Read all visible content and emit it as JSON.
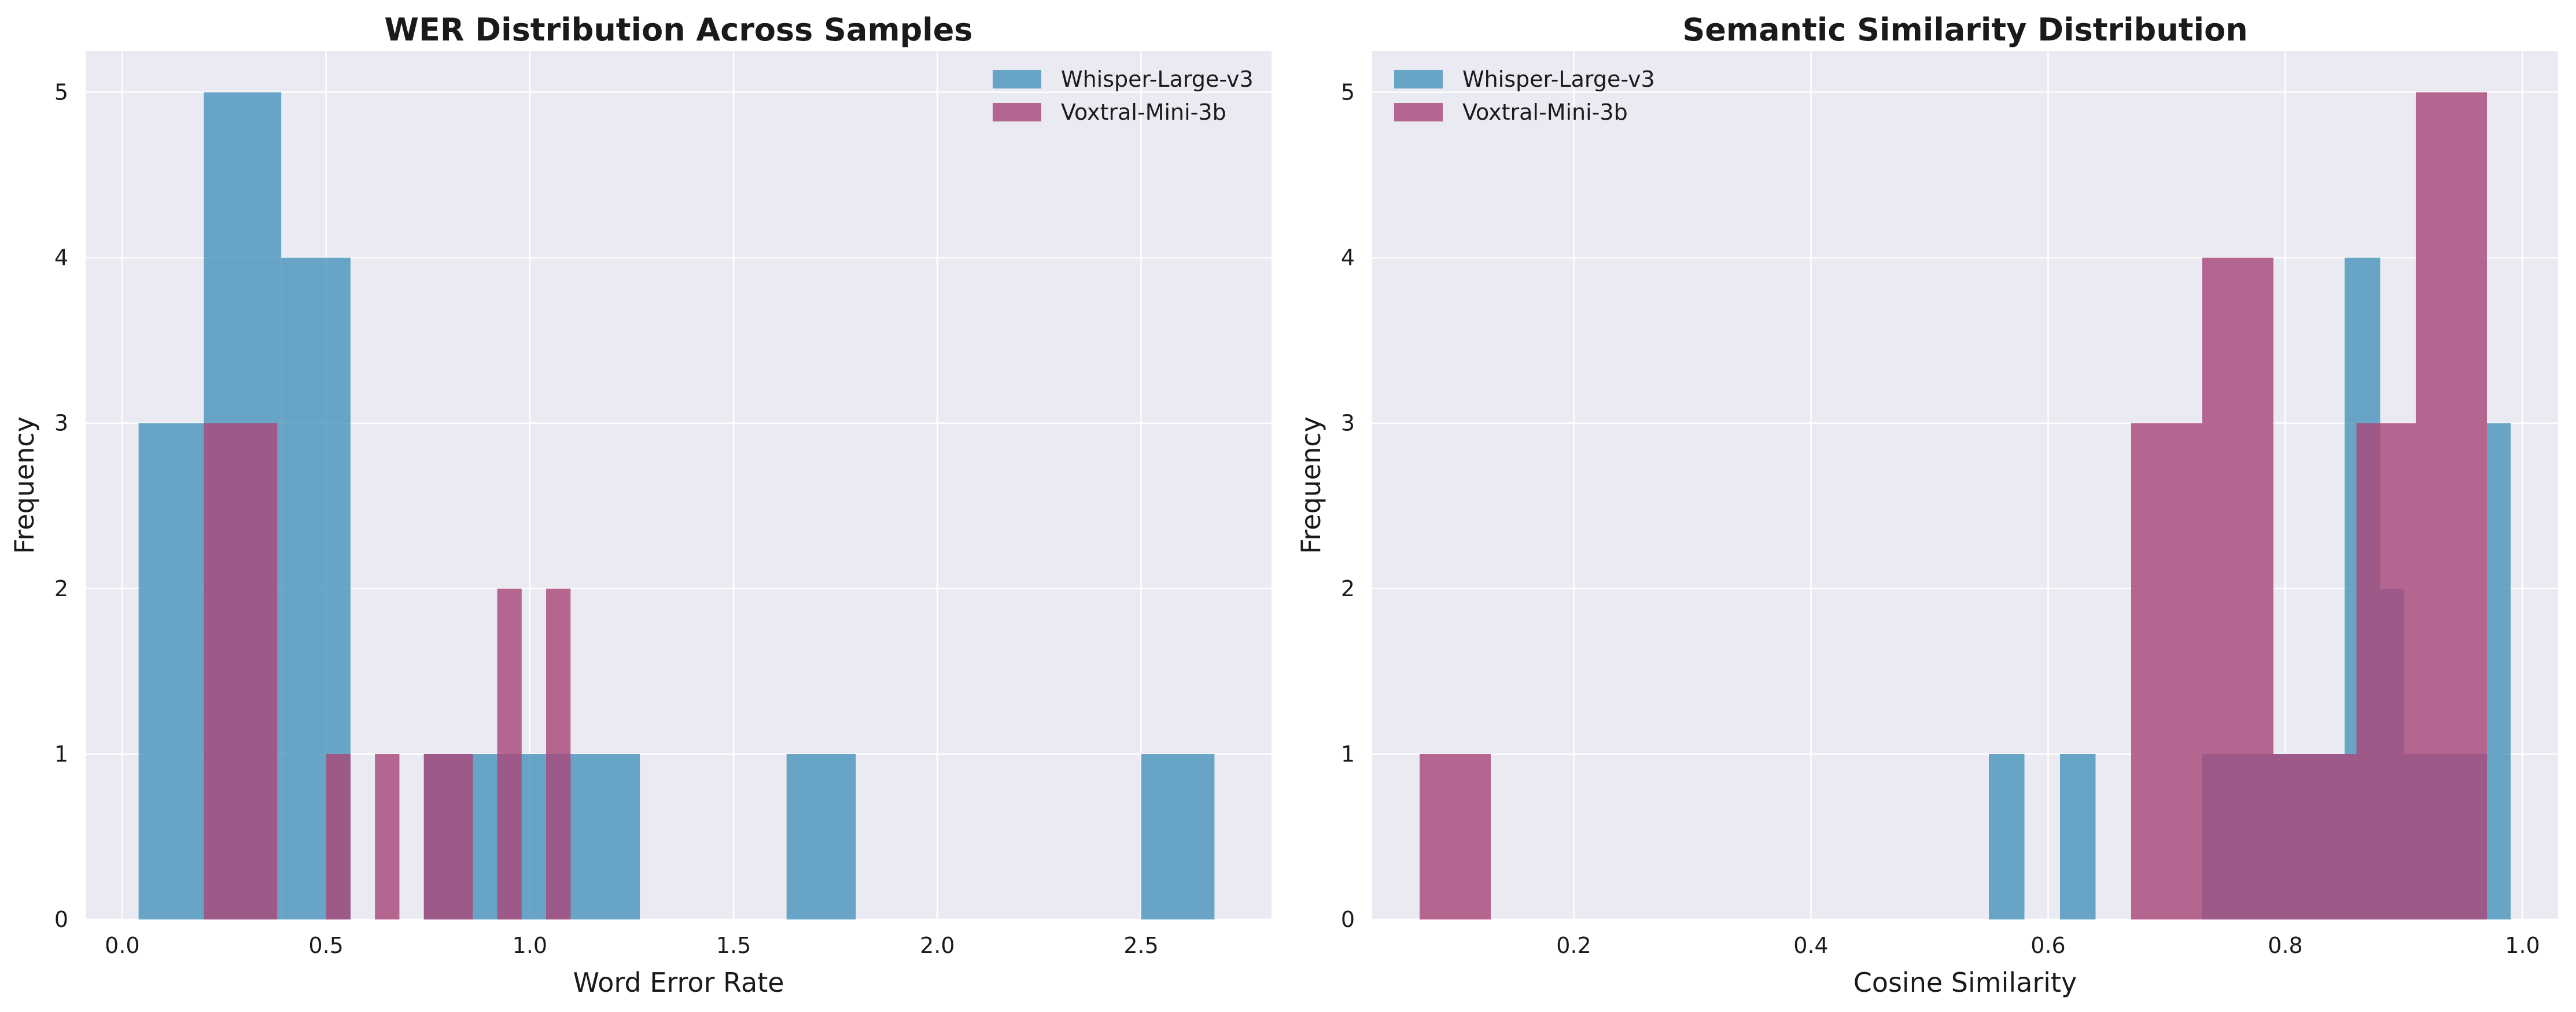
{
  "chart_data": [
    {
      "type": "histogram",
      "title": "WER Distribution Across Samples",
      "xlabel": "Word Error Rate",
      "ylabel": "Frequency",
      "xlim": [
        -0.09,
        2.82
      ],
      "ylim": [
        0,
        5.25
      ],
      "xticks": [
        0.0,
        0.5,
        1.0,
        1.5,
        2.0,
        2.5
      ],
      "xtick_labels": [
        "0.0",
        "0.5",
        "1.0",
        "1.5",
        "2.0",
        "2.5"
      ],
      "yticks": [
        0,
        1,
        2,
        3,
        4,
        5
      ],
      "ytick_labels": [
        "0",
        "1",
        "2",
        "3",
        "4",
        "5"
      ],
      "grid": true,
      "legend_position": "top-right",
      "series": [
        {
          "name": "Whisper-Large-v3",
          "color": "#4c95bb",
          "bins": [
            {
              "x0": 0.04,
              "x1": 0.2,
              "count": 3
            },
            {
              "x0": 0.2,
              "x1": 0.39,
              "count": 5
            },
            {
              "x0": 0.39,
              "x1": 0.56,
              "count": 4
            },
            {
              "x0": 0.74,
              "x1": 0.85,
              "count": 1
            },
            {
              "x0": 0.85,
              "x1": 1.27,
              "count": 1
            },
            {
              "x0": 1.63,
              "x1": 1.8,
              "count": 1
            },
            {
              "x0": 2.5,
              "x1": 2.68,
              "count": 1
            }
          ]
        },
        {
          "name": "Voxtral-Mini-3b",
          "color": "#a8487a",
          "bins": [
            {
              "x0": 0.2,
              "x1": 0.38,
              "count": 3
            },
            {
              "x0": 0.5,
              "x1": 0.56,
              "count": 1
            },
            {
              "x0": 0.62,
              "x1": 0.68,
              "count": 1
            },
            {
              "x0": 0.74,
              "x1": 0.86,
              "count": 1
            },
            {
              "x0": 0.92,
              "x1": 0.98,
              "count": 2
            },
            {
              "x0": 1.04,
              "x1": 1.1,
              "count": 2
            }
          ]
        }
      ]
    },
    {
      "type": "histogram",
      "title": "Semantic Similarity Distribution",
      "xlabel": "Cosine Similarity",
      "ylabel": "Frequency",
      "xlim": [
        0.03,
        1.03
      ],
      "ylim": [
        0,
        5.25
      ],
      "xticks": [
        0.2,
        0.4,
        0.6,
        0.8,
        1.0
      ],
      "xtick_labels": [
        "0.2",
        "0.4",
        "0.6",
        "0.8",
        "1.0"
      ],
      "yticks": [
        0,
        1,
        2,
        3,
        4,
        5
      ],
      "ytick_labels": [
        "0",
        "1",
        "2",
        "3",
        "4",
        "5"
      ],
      "grid": true,
      "legend_position": "top-left",
      "series": [
        {
          "name": "Whisper-Large-v3",
          "color": "#4c95bb",
          "bins": [
            {
              "x0": 0.55,
              "x1": 0.58,
              "count": 1
            },
            {
              "x0": 0.61,
              "x1": 0.64,
              "count": 1
            },
            {
              "x0": 0.73,
              "x1": 0.85,
              "count": 1
            },
            {
              "x0": 0.85,
              "x1": 0.88,
              "count": 4
            },
            {
              "x0": 0.88,
              "x1": 0.9,
              "count": 2
            },
            {
              "x0": 0.9,
              "x1": 0.97,
              "count": 1
            },
            {
              "x0": 0.97,
              "x1": 0.99,
              "count": 3
            }
          ]
        },
        {
          "name": "Voxtral-Mini-3b",
          "color": "#a8487a",
          "bins": [
            {
              "x0": 0.07,
              "x1": 0.13,
              "count": 1
            },
            {
              "x0": 0.67,
              "x1": 0.73,
              "count": 3
            },
            {
              "x0": 0.73,
              "x1": 0.79,
              "count": 4
            },
            {
              "x0": 0.79,
              "x1": 0.86,
              "count": 1
            },
            {
              "x0": 0.86,
              "x1": 0.91,
              "count": 3
            },
            {
              "x0": 0.91,
              "x1": 0.97,
              "count": 5
            }
          ]
        }
      ]
    }
  ]
}
